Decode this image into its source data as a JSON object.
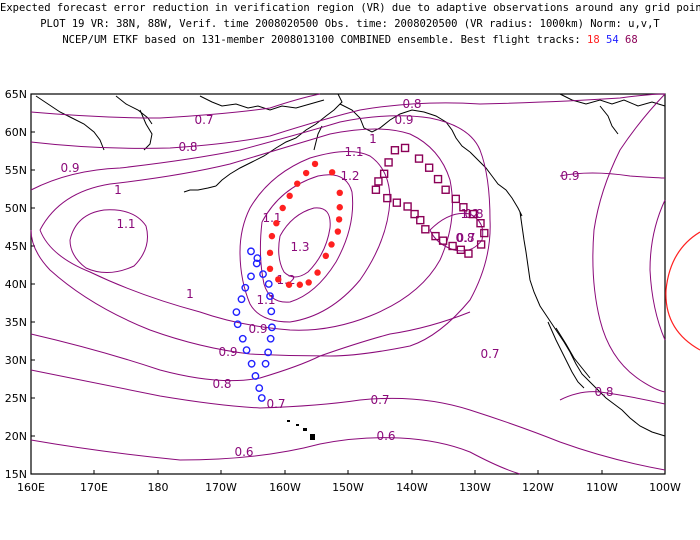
{
  "header": {
    "line1": "Expected forecast error reduction in verification region (VR) due to adaptive observations around any grid point.",
    "line2": "PLOT 19 VR: 38N, 88W, Verif. time 2008020500 Obs. time: 2008020500 (VR radius: 1000km) Norm: u,v,T",
    "line3_prefix": "NCEP/UM ETKF based on 131-member 2008013100 COMBINED ensemble.  Best flight tracks: ",
    "tracks": [
      "18",
      "54",
      "68"
    ]
  },
  "colors": {
    "contour": "#8b0a7a",
    "coast": "#000000",
    "track_18": "#ff2020",
    "track_54": "#2020ff",
    "track_68": "#8b0057",
    "verification_circle": "#ff2020"
  },
  "axes": {
    "lat_labels": [
      "65N",
      "60N",
      "55N",
      "50N",
      "45N",
      "40N",
      "35N",
      "30N",
      "25N",
      "20N",
      "15N"
    ],
    "lon_labels": [
      "160E",
      "170E",
      "180",
      "170W",
      "160W",
      "150W",
      "140W",
      "130W",
      "120W",
      "110W",
      "100W"
    ]
  },
  "contour_labels": [
    "0.8",
    "0.9",
    "0.7",
    "0.8",
    "0.9",
    "1",
    "1.1",
    "1.1",
    "1.2",
    "0.9",
    "1",
    "1.1",
    "1.3",
    "1.2",
    "1.1",
    "1.2",
    "1",
    "0.9",
    "0.8",
    "0.8",
    "0.8",
    "0.7",
    "0.9",
    "0.7",
    "0.7",
    "0.7",
    "0.6",
    "0.6",
    "0.8"
  ],
  "tracks": [
    {
      "id": "18",
      "marker": "filled-circle",
      "points": [
        [
          -152.5,
          54.7
        ],
        [
          -151.3,
          52.0
        ],
        [
          -151.3,
          50.1
        ],
        [
          -151.4,
          48.5
        ],
        [
          -151.6,
          46.9
        ],
        [
          -152.6,
          45.2
        ],
        [
          -153.5,
          43.7
        ],
        [
          -154.8,
          41.5
        ],
        [
          -156.2,
          40.2
        ],
        [
          -157.6,
          39.9
        ],
        [
          -159.3,
          39.9
        ],
        [
          -161.0,
          40.6
        ],
        [
          -162.3,
          42.0
        ],
        [
          -162.3,
          44.1
        ],
        [
          -162.0,
          46.3
        ],
        [
          -161.3,
          48.0
        ],
        [
          -160.3,
          50.0
        ],
        [
          -159.2,
          51.6
        ],
        [
          -158.0,
          53.2
        ],
        [
          -156.6,
          54.6
        ],
        [
          -155.2,
          55.8
        ]
      ]
    },
    {
      "id": "54",
      "marker": "open-circle",
      "points": [
        [
          -164.4,
          42.7
        ],
        [
          -165.3,
          41.0
        ],
        [
          -166.2,
          39.5
        ],
        [
          -166.8,
          38.0
        ],
        [
          -167.6,
          36.3
        ],
        [
          -167.4,
          34.7
        ],
        [
          -166.6,
          32.8
        ],
        [
          -166.0,
          31.3
        ],
        [
          -165.2,
          29.5
        ],
        [
          -164.6,
          27.9
        ],
        [
          -164.0,
          26.3
        ],
        [
          -163.6,
          25.0
        ],
        [
          -163.0,
          29.5
        ],
        [
          -162.6,
          31.0
        ],
        [
          -162.2,
          32.8
        ],
        [
          -162.0,
          34.3
        ],
        [
          -162.1,
          36.4
        ],
        [
          -162.3,
          38.4
        ],
        [
          -162.5,
          40.0
        ],
        [
          -163.4,
          41.3
        ],
        [
          -164.3,
          43.4
        ],
        [
          -165.3,
          44.3
        ]
      ]
    },
    {
      "id": "68",
      "marker": "open-square",
      "points": [
        [
          -141.0,
          57.9
        ],
        [
          -142.6,
          57.6
        ],
        [
          -143.6,
          56.0
        ],
        [
          -144.3,
          54.5
        ],
        [
          -145.2,
          53.5
        ],
        [
          -145.6,
          52.4
        ],
        [
          -143.8,
          51.3
        ],
        [
          -142.3,
          50.7
        ],
        [
          -140.6,
          50.2
        ],
        [
          -139.5,
          49.2
        ],
        [
          -138.6,
          48.4
        ],
        [
          -137.8,
          47.2
        ],
        [
          -136.2,
          46.3
        ],
        [
          -135.0,
          45.7
        ],
        [
          -133.5,
          45.0
        ],
        [
          -132.2,
          44.5
        ],
        [
          -131.0,
          44.0
        ],
        [
          -129.0,
          45.2
        ],
        [
          -128.5,
          46.7
        ],
        [
          -129.1,
          48.0
        ],
        [
          -130.3,
          49.2
        ],
        [
          -131.8,
          50.1
        ],
        [
          -133.0,
          51.2
        ],
        [
          -134.6,
          52.4
        ],
        [
          -135.8,
          53.8
        ],
        [
          -137.2,
          55.3
        ],
        [
          -138.8,
          56.5
        ]
      ]
    }
  ]
}
